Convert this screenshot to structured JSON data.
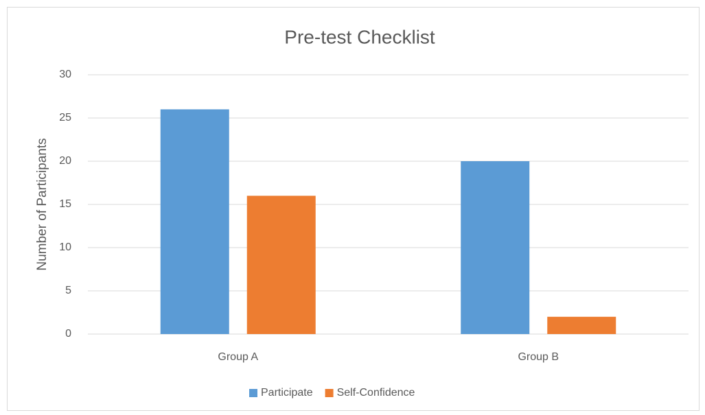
{
  "chart_data": {
    "type": "bar",
    "title": "Pre-test Checklist",
    "y_label": "Number of Participants",
    "categories": [
      "Group A",
      "Group B"
    ],
    "series": [
      {
        "name": "Participate",
        "color": "#5b9bd5",
        "values": [
          26,
          20
        ]
      },
      {
        "name": "Self-Confidence",
        "color": "#ed7d31",
        "values": [
          16,
          2
        ]
      }
    ],
    "ylim": [
      0,
      30
    ],
    "yticks": [
      0,
      5,
      10,
      15,
      20,
      25,
      30
    ],
    "grid": true,
    "legend": "bottom"
  }
}
